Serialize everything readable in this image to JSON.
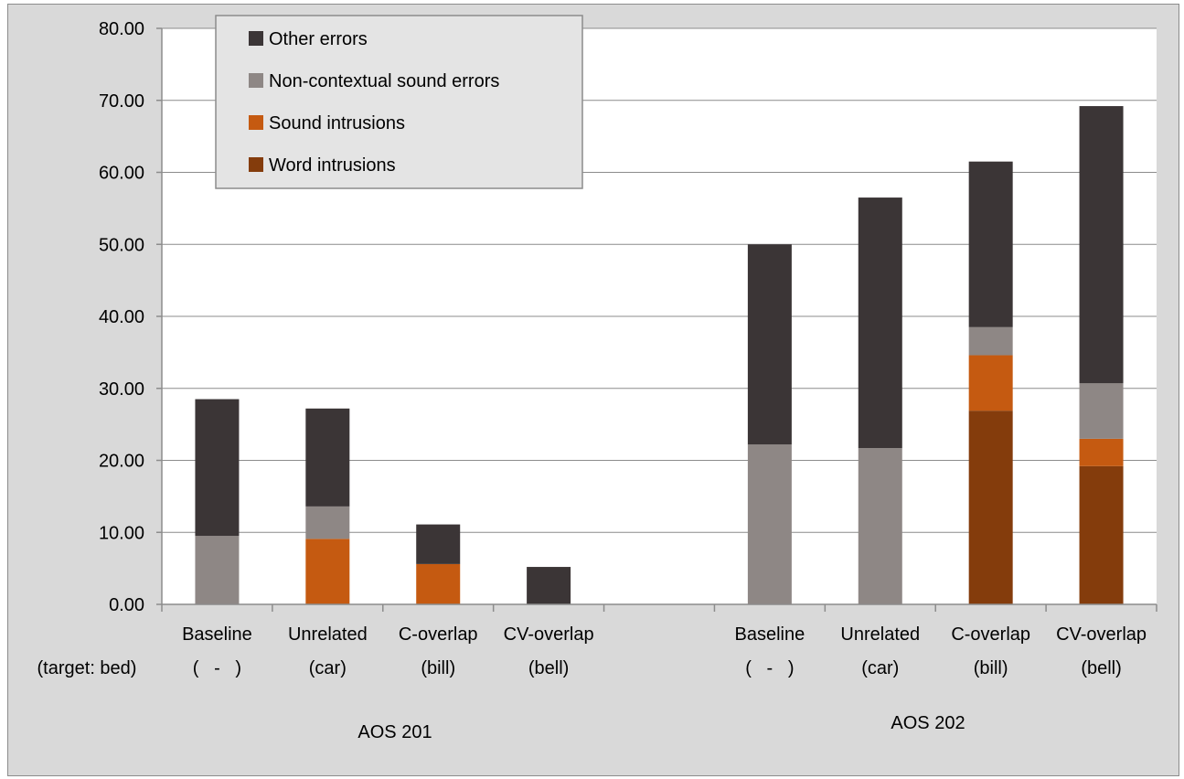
{
  "chart_data": {
    "type": "bar",
    "stacked": true,
    "ylim": [
      0,
      80
    ],
    "yticks": [
      "0.00",
      "10.00",
      "20.00",
      "30.00",
      "40.00",
      "50.00",
      "60.00",
      "70.00",
      "80.00"
    ],
    "gridlines": true,
    "row_label": "(target: bed)",
    "categories": [
      {
        "line1": "Baseline",
        "line2": "(   -   )"
      },
      {
        "line1": "Unrelated",
        "line2": "(car)"
      },
      {
        "line1": "C-overlap",
        "line2": "(bill)"
      },
      {
        "line1": "CV-overlap",
        "line2": "(bell)"
      },
      {
        "line1": "",
        "line2": ""
      },
      {
        "line1": "Baseline",
        "line2": "(   -   )"
      },
      {
        "line1": "Unrelated",
        "line2": "(car)"
      },
      {
        "line1": "C-overlap",
        "line2": "(bill)"
      },
      {
        "line1": "CV-overlap",
        "line2": "(bell)"
      }
    ],
    "groups": [
      "AOS 201",
      "AOS 202"
    ],
    "legend_position": "top-left",
    "series": [
      {
        "name": "Word intrusions",
        "color": "#843c0c",
        "values": [
          0,
          0,
          0,
          0,
          0,
          0,
          0,
          26.9,
          19.2
        ]
      },
      {
        "name": "Sound intrusions",
        "color": "#c55a11",
        "values": [
          0,
          9.1,
          5.6,
          0,
          0,
          0,
          0,
          7.7,
          3.8
        ]
      },
      {
        "name": "Non-contextual sound errors",
        "color": "#8e8785",
        "values": [
          9.5,
          4.5,
          0,
          0,
          0,
          22.2,
          21.7,
          3.9,
          7.7
        ]
      },
      {
        "name": "Other errors",
        "color": "#3b3536",
        "values": [
          19.0,
          13.6,
          5.5,
          5.2,
          0,
          27.8,
          34.8,
          23.0,
          38.5
        ]
      }
    ],
    "legend_order": [
      "Other errors",
      "Non-contextual sound errors",
      "Sound intrusions",
      "Word intrusions"
    ]
  }
}
